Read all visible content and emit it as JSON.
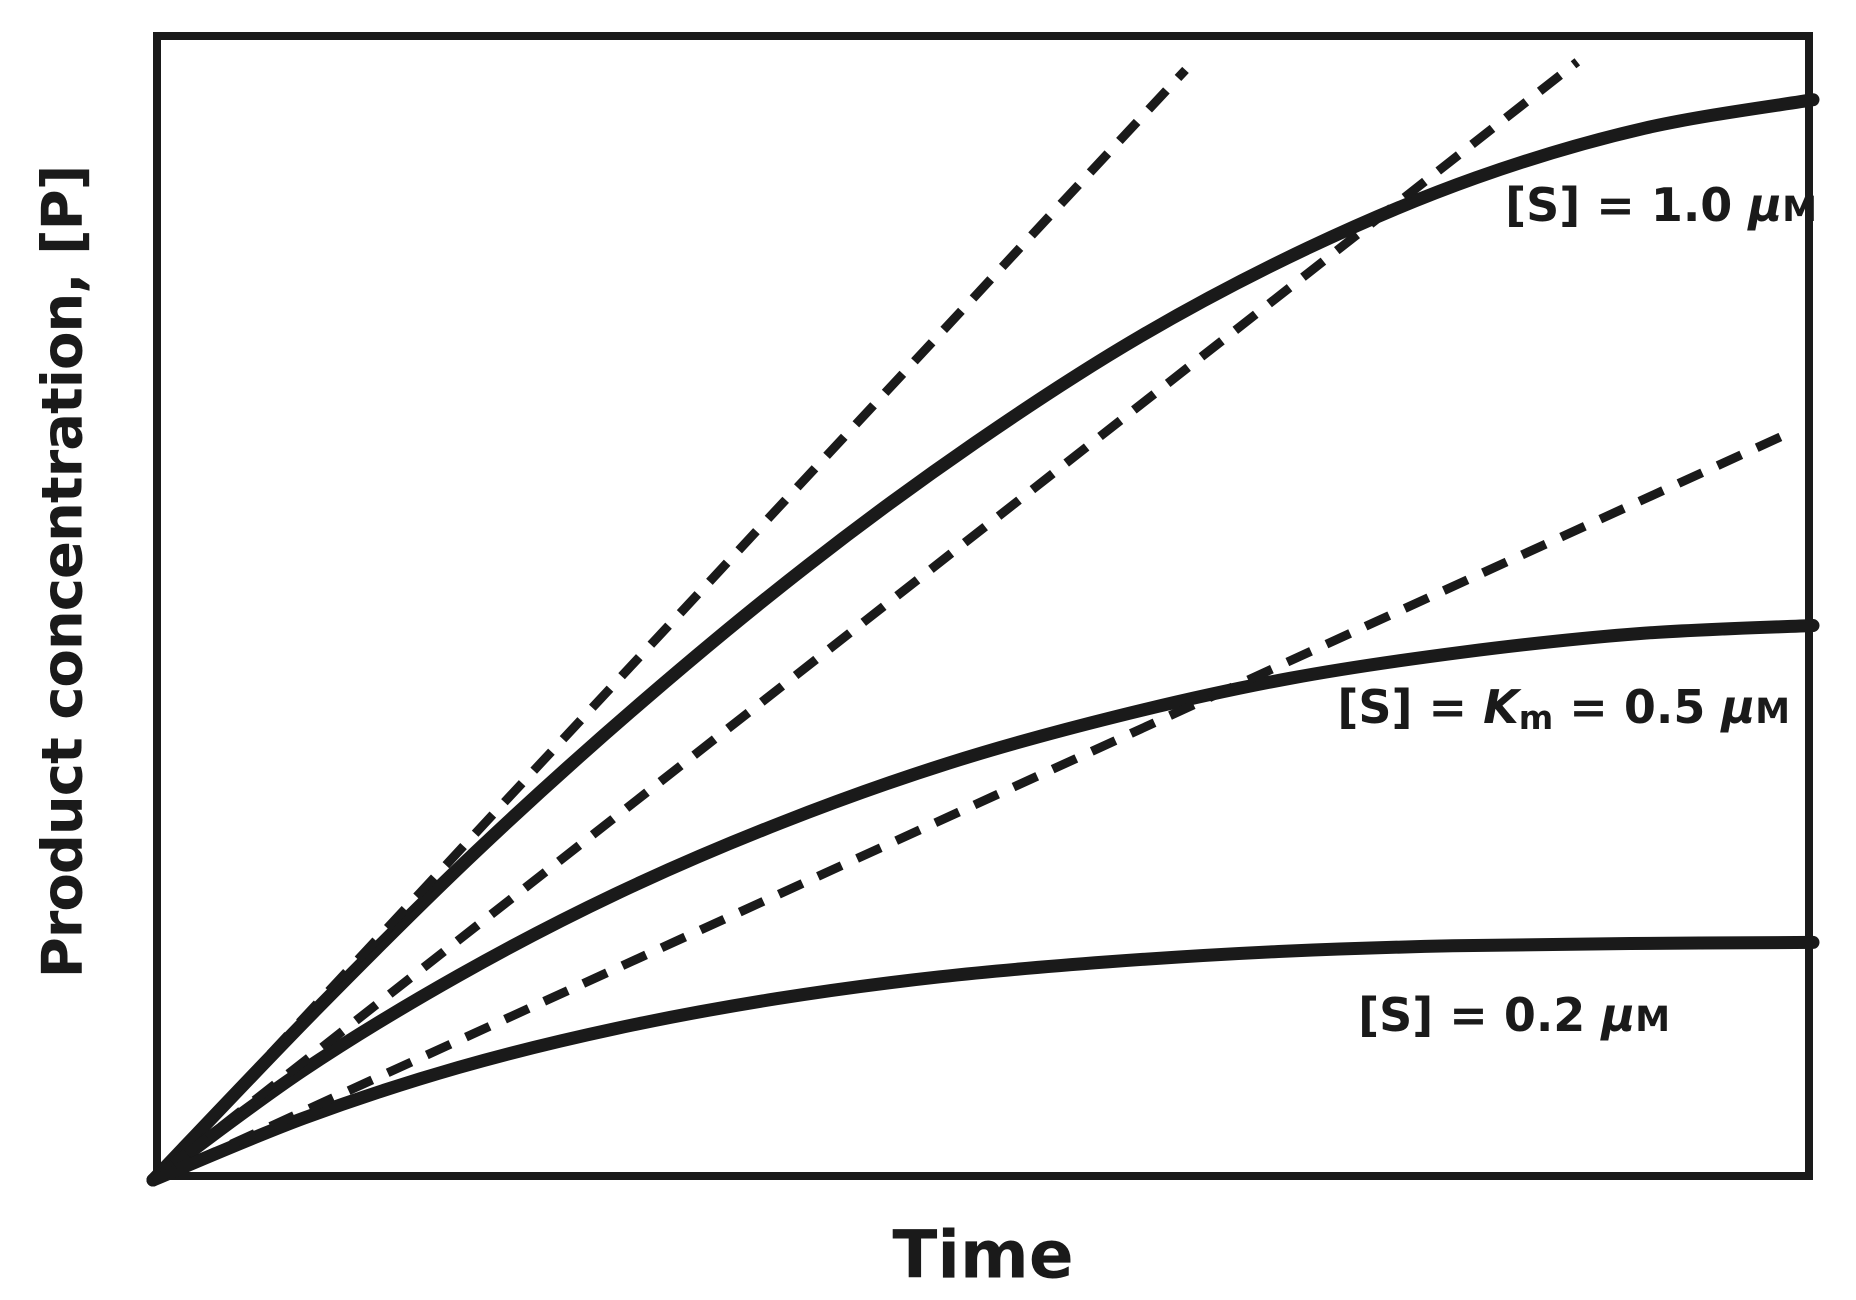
{
  "figure": {
    "background": "#ffffff",
    "ink_color": "#1a1a1a",
    "x_axis_label": "Time",
    "y_axis_label": "Product concentration, [P]"
  },
  "labels": {
    "s10": {
      "text": "[S] = 1.0 μM",
      "segments": [
        {
          "t": "[S] = 1.0 ",
          "s": "b"
        },
        {
          "t": "μ",
          "s": "bi"
        },
        {
          "t": "M",
          "s": "sc"
        }
      ]
    },
    "s05": {
      "text": "[S] = Km = 0.5 μM",
      "segments": [
        {
          "t": "[S] = ",
          "s": "b"
        },
        {
          "t": "K",
          "s": "bi"
        },
        {
          "t": "m",
          "s": "sub"
        },
        {
          "t": " = 0.5 ",
          "s": "b"
        },
        {
          "t": "μ",
          "s": "bi"
        },
        {
          "t": "M",
          "s": "sc"
        }
      ]
    },
    "s02": {
      "text": "[S] = 0.2 μM",
      "segments": [
        {
          "t": "[S] = 0.2 ",
          "s": "b"
        },
        {
          "t": "μ",
          "s": "bi"
        },
        {
          "t": "M",
          "s": "sc"
        }
      ]
    }
  },
  "chart_data": {
    "type": "line",
    "xlabel": "Time",
    "ylabel": "Product concentration, [P]",
    "x_ticks": [],
    "y_ticks": [],
    "legend": "none",
    "grid": false,
    "axis_style": "closed box, no tick marks (qualitative axes)",
    "units_note": "x and y given as fractions 0-1 of the axis spans (axes are unlabeled/qualitative)",
    "series": [
      {
        "id": "curve-s-1-0",
        "name": "[S] = 1.0 μM",
        "style": "solid",
        "x": [
          0,
          0.098,
          0.196,
          0.295,
          0.395,
          0.495,
          0.595,
          0.696,
          0.797,
          0.898,
          1.0
        ],
        "y": [
          0,
          0.148,
          0.288,
          0.417,
          0.536,
          0.642,
          0.735,
          0.812,
          0.873,
          0.916,
          0.941
        ]
      },
      {
        "id": "curve-s-0-5",
        "name": "[S] = Km = 0.5 μM",
        "style": "solid",
        "x": [
          0,
          0.09,
          0.184,
          0.28,
          0.378,
          0.479,
          0.581,
          0.685,
          0.79,
          0.895,
          1.0
        ],
        "y": [
          0,
          0.095,
          0.178,
          0.25,
          0.311,
          0.363,
          0.404,
          0.437,
          0.46,
          0.476,
          0.483
        ]
      },
      {
        "id": "curve-s-0-2",
        "name": "[S] = 0.2 μM",
        "style": "solid",
        "x": [
          0,
          0.091,
          0.184,
          0.279,
          0.376,
          0.474,
          0.575,
          0.678,
          0.783,
          0.89,
          1.0
        ],
        "y": [
          0,
          0.054,
          0.098,
          0.132,
          0.158,
          0.177,
          0.19,
          0.199,
          0.204,
          0.206,
          0.207
        ]
      },
      {
        "id": "tangent-s-1-0",
        "name": "initial-rate tangent, [S] = 1.0 μM",
        "style": "dashed",
        "x": [
          0,
          0.622
        ],
        "y": [
          0,
          0.967
        ]
      },
      {
        "id": "tangent-s-0-5",
        "name": "initial-rate tangent, [S] = Km = 0.5 μM",
        "style": "dashed",
        "x": [
          0,
          0.858
        ],
        "y": [
          0,
          0.974
        ]
      },
      {
        "id": "tangent-s-0-2",
        "name": "initial-rate tangent, [S] = 0.2 μM",
        "style": "dashed",
        "x": [
          0,
          0.989
        ],
        "y": [
          0,
          0.653
        ]
      }
    ],
    "annotations": [
      {
        "text": "[S] = 1.0 μM",
        "x": 0.92,
        "y": 0.85,
        "anchor": "end"
      },
      {
        "text": "[S] = Km = 0.5 μM",
        "x": 0.91,
        "y": 0.41,
        "anchor": "end"
      },
      {
        "text": "[S] = 0.2 μM",
        "x": 0.84,
        "y": 0.14,
        "anchor": "end"
      }
    ]
  }
}
